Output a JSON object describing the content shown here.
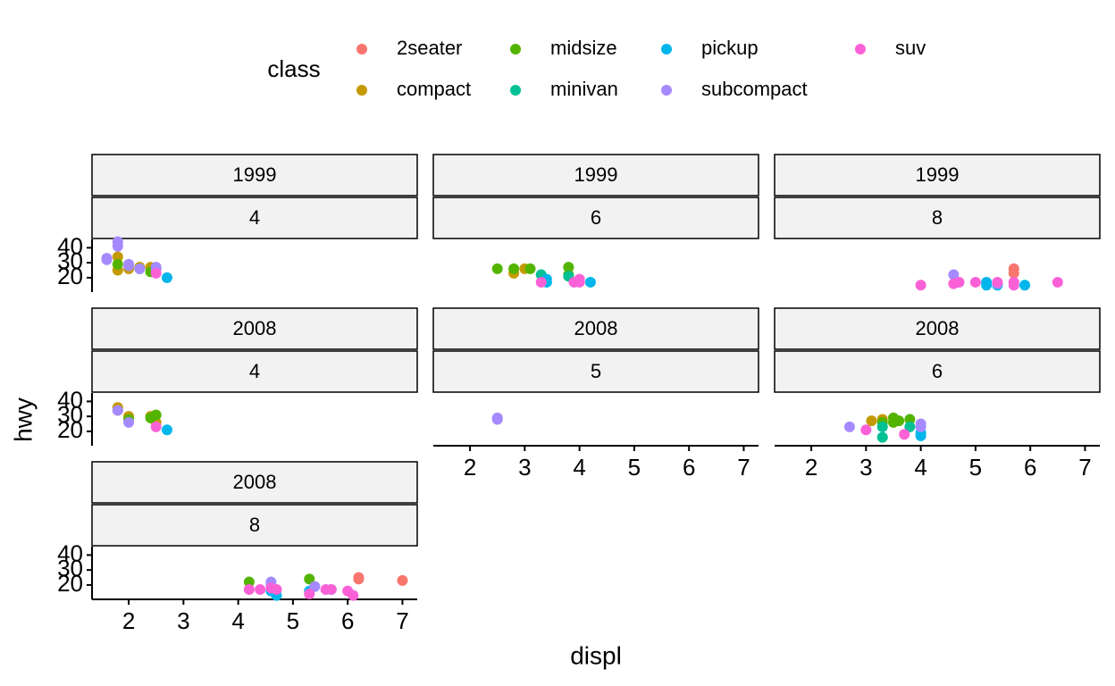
{
  "chart_data": {
    "type": "scatter",
    "x_label": "displ",
    "y_label": "hwy",
    "legend_title": "class",
    "legend": "top",
    "xlim": [
      1.33,
      7.27
    ],
    "xticks": [
      2,
      3,
      4,
      5,
      6,
      7
    ],
    "ylim": [
      10.4,
      45.6
    ],
    "yticks": [
      20,
      30,
      40
    ],
    "series": [
      {
        "name": "2seater",
        "color": "#F8766D"
      },
      {
        "name": "compact",
        "color": "#C49A00"
      },
      {
        "name": "midsize",
        "color": "#53B400"
      },
      {
        "name": "minivan",
        "color": "#00C094"
      },
      {
        "name": "pickup",
        "color": "#00B6EB"
      },
      {
        "name": "subcompact",
        "color": "#A58AFF"
      },
      {
        "name": "suv",
        "color": "#FB61D7"
      }
    ],
    "panels": [
      {
        "year": "1999",
        "cyl": "4",
        "series": [
          {
            "x": [],
            "y": []
          },
          {
            "x": [
              1.8,
              1.8,
              2.0,
              2.2,
              2.4,
              2.5
            ],
            "y": [
              34,
              25,
              26,
              27,
              27,
              26
            ]
          },
          {
            "x": [
              1.8,
              2.2,
              2.4
            ],
            "y": [
              29,
              26,
              24
            ]
          },
          {
            "x": [],
            "y": []
          },
          {
            "x": [
              2.7
            ],
            "y": [
              20
            ]
          },
          {
            "x": [
              1.6,
              1.6,
              1.8,
              1.8,
              2.0,
              2.0,
              2.2,
              2.5,
              2.5
            ],
            "y": [
              33,
              32,
              44,
              41,
              29,
              28,
              26,
              27,
              26
            ]
          },
          {
            "x": [
              2.5
            ],
            "y": [
              23
            ]
          }
        ]
      },
      {
        "year": "1999",
        "cyl": "6",
        "series": [
          {
            "x": [],
            "y": []
          },
          {
            "x": [
              2.8,
              3.0
            ],
            "y": [
              23,
              26
            ]
          },
          {
            "x": [
              2.5,
              2.8,
              3.1,
              3.8,
              3.8
            ],
            "y": [
              26,
              26,
              26,
              27,
              22
            ]
          },
          {
            "x": [
              3.3,
              3.8
            ],
            "y": [
              22,
              21
            ]
          },
          {
            "x": [
              3.4,
              3.4,
              4.2
            ],
            "y": [
              19,
              17,
              17
            ]
          },
          {
            "x": [],
            "y": []
          },
          {
            "x": [
              3.3,
              4.0,
              4.0,
              3.9
            ],
            "y": [
              17,
              19,
              17,
              17
            ]
          }
        ]
      },
      {
        "year": "1999",
        "cyl": "8",
        "series": [
          {
            "x": [
              5.7,
              5.7
            ],
            "y": [
              26,
              23
            ]
          },
          {
            "x": [],
            "y": []
          },
          {
            "x": [],
            "y": []
          },
          {
            "x": [],
            "y": []
          },
          {
            "x": [
              5.2,
              5.2,
              5.9,
              5.4
            ],
            "y": [
              17,
              15,
              15,
              15
            ]
          },
          {
            "x": [
              4.6,
              5.4
            ],
            "y": [
              22,
              16
            ]
          },
          {
            "x": [
              4.0,
              4.6,
              4.7,
              5.0,
              5.7,
              5.7,
              6.5,
              5.4
            ],
            "y": [
              15,
              16,
              17,
              17,
              17,
              15,
              17,
              17
            ]
          }
        ]
      },
      {
        "year": "2008",
        "cyl": "4",
        "series": [
          {
            "x": [],
            "y": []
          },
          {
            "x": [
              1.8,
              1.8,
              2.0,
              2.4,
              2.5
            ],
            "y": [
              36,
              34,
              30,
              30,
              26
            ]
          },
          {
            "x": [
              2.0,
              2.5,
              2.4
            ],
            "y": [
              28,
              31,
              29
            ]
          },
          {
            "x": [],
            "y": []
          },
          {
            "x": [
              2.7
            ],
            "y": [
              21
            ]
          },
          {
            "x": [
              2.0,
              1.8
            ],
            "y": [
              26,
              34
            ]
          },
          {
            "x": [
              2.5
            ],
            "y": [
              23
            ]
          }
        ]
      },
      {
        "year": "2008",
        "cyl": "5",
        "series": [
          {
            "x": [],
            "y": []
          },
          {
            "x": [],
            "y": []
          },
          {
            "x": [],
            "y": []
          },
          {
            "x": [],
            "y": []
          },
          {
            "x": [],
            "y": []
          },
          {
            "x": [
              2.5,
              2.5
            ],
            "y": [
              28,
              29
            ]
          },
          {
            "x": [],
            "y": []
          }
        ]
      },
      {
        "year": "2008",
        "cyl": "6",
        "series": [
          {
            "x": [],
            "y": []
          },
          {
            "x": [
              3.1,
              3.3
            ],
            "y": [
              27,
              28
            ]
          },
          {
            "x": [
              3.5,
              3.5,
              3.8,
              3.3,
              3.6
            ],
            "y": [
              29,
              26,
              28,
              26,
              27
            ]
          },
          {
            "x": [
              3.3,
              3.3,
              3.8
            ],
            "y": [
              16,
              23,
              23
            ]
          },
          {
            "x": [
              4.0,
              4.0
            ],
            "y": [
              19,
              17
            ]
          },
          {
            "x": [
              2.7,
              4.0,
              4.0
            ],
            "y": [
              23,
              25,
              23
            ]
          },
          {
            "x": [
              3.0,
              3.7
            ],
            "y": [
              21,
              18
            ]
          }
        ]
      },
      {
        "year": "2008",
        "cyl": "8",
        "series": [
          {
            "x": [
              6.2,
              6.2,
              7.0
            ],
            "y": [
              25,
              24,
              23
            ]
          },
          {
            "x": [],
            "y": []
          },
          {
            "x": [
              4.2,
              5.3
            ],
            "y": [
              22,
              24
            ]
          },
          {
            "x": [],
            "y": []
          },
          {
            "x": [
              4.6,
              4.7,
              5.3,
              5.7
            ],
            "y": [
              16,
              13,
              16,
              17
            ]
          },
          {
            "x": [
              4.6,
              4.6,
              5.4
            ],
            "y": [
              22,
              20,
              19
            ]
          },
          {
            "x": [
              4.2,
              4.4,
              4.6,
              4.7,
              5.3,
              5.6,
              5.7,
              6.0,
              6.1
            ],
            "y": [
              17,
              17,
              18,
              17,
              14,
              17,
              17,
              16,
              13
            ]
          }
        ]
      }
    ]
  }
}
